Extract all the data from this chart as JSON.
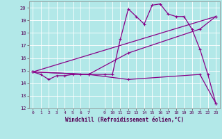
{
  "bg_color": "#b2e8e8",
  "line_color": "#880088",
  "grid_color": "#ffffff",
  "xlabel": "Windchill (Refroidissement éolien,°C)",
  "xlim": [
    -0.5,
    23.5
  ],
  "ylim": [
    12,
    20.5
  ],
  "yticks": [
    12,
    13,
    14,
    15,
    16,
    17,
    18,
    19,
    20
  ],
  "xticks": [
    0,
    1,
    2,
    3,
    4,
    5,
    6,
    7,
    9,
    10,
    11,
    12,
    13,
    14,
    15,
    16,
    17,
    18,
    19,
    20,
    21,
    22,
    23
  ],
  "xtick_labels": [
    "0",
    "1",
    "2",
    "3",
    "4",
    "5",
    "6",
    "7",
    "9",
    "10",
    "11",
    "12",
    "13",
    "14",
    "15",
    "16",
    "17",
    "18",
    "19",
    "20",
    "21",
    "22",
    "23"
  ],
  "series1_x": [
    0,
    1,
    2,
    3,
    4,
    5,
    6,
    7,
    9,
    10,
    11,
    12,
    13,
    14,
    15,
    16,
    17,
    18,
    19,
    20,
    21,
    22,
    23
  ],
  "series1_y": [
    14.9,
    14.7,
    14.3,
    14.6,
    14.6,
    14.7,
    14.7,
    14.7,
    14.7,
    14.7,
    17.5,
    19.9,
    19.3,
    18.7,
    20.2,
    20.3,
    19.5,
    19.3,
    19.3,
    18.3,
    16.7,
    14.7,
    12.4
  ],
  "series2_x": [
    0,
    7,
    12,
    21,
    23
  ],
  "series2_y": [
    14.9,
    14.7,
    16.4,
    18.3,
    19.3
  ],
  "series3_x": [
    0,
    7,
    12,
    21,
    23
  ],
  "series3_y": [
    14.9,
    14.7,
    14.3,
    14.7,
    12.4
  ],
  "series4_x": [
    0,
    23
  ],
  "series4_y": [
    14.9,
    19.3
  ]
}
